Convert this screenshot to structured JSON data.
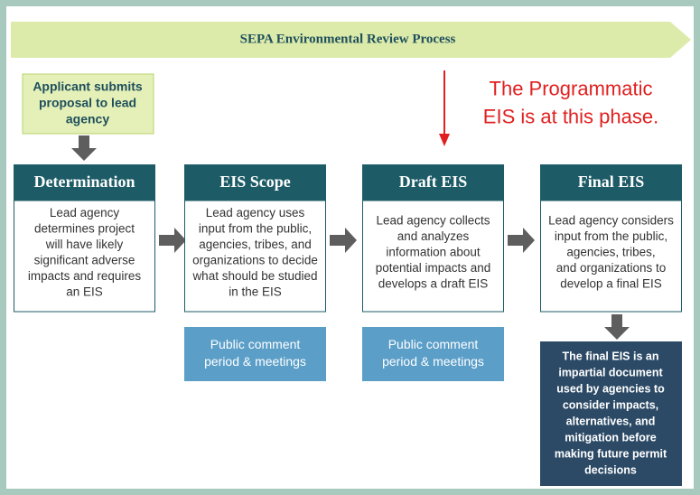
{
  "title": "SEPA Environmental Review Process",
  "applicant": [
    "Applicant submits",
    "proposal to lead",
    "agency"
  ],
  "annotation": [
    "The Programmatic",
    "EIS is at this phase."
  ],
  "stages": [
    {
      "title": "Determination",
      "body": [
        "Lead agency",
        "determines project",
        "will have likely",
        "significant adverse",
        "impacts and requires",
        "an EIS"
      ]
    },
    {
      "title": "EIS Scope",
      "body": [
        "Lead agency uses",
        "input from the public,",
        "agencies, tribes, and",
        "organizations to decide",
        "what should be studied",
        "in the EIS"
      ]
    },
    {
      "title": "Draft EIS",
      "body": [
        "Lead agency collects",
        "and analyzes",
        "information about",
        "potential impacts and",
        "develops a draft EIS"
      ]
    },
    {
      "title": "Final EIS",
      "body": [
        "Lead agency considers",
        "input from the public,",
        "agencies, tribes,",
        "and organizations to",
        "develop a final EIS"
      ]
    }
  ],
  "comments": [
    [
      "Public comment",
      "period & meetings"
    ],
    [
      "Public comment",
      "period & meetings"
    ]
  ],
  "final_note": [
    "The final EIS is an",
    "impartial document",
    "used by agencies to",
    "consider impacts,",
    "alternatives, and",
    "mitigation before",
    "making future permit",
    "decisions"
  ]
}
